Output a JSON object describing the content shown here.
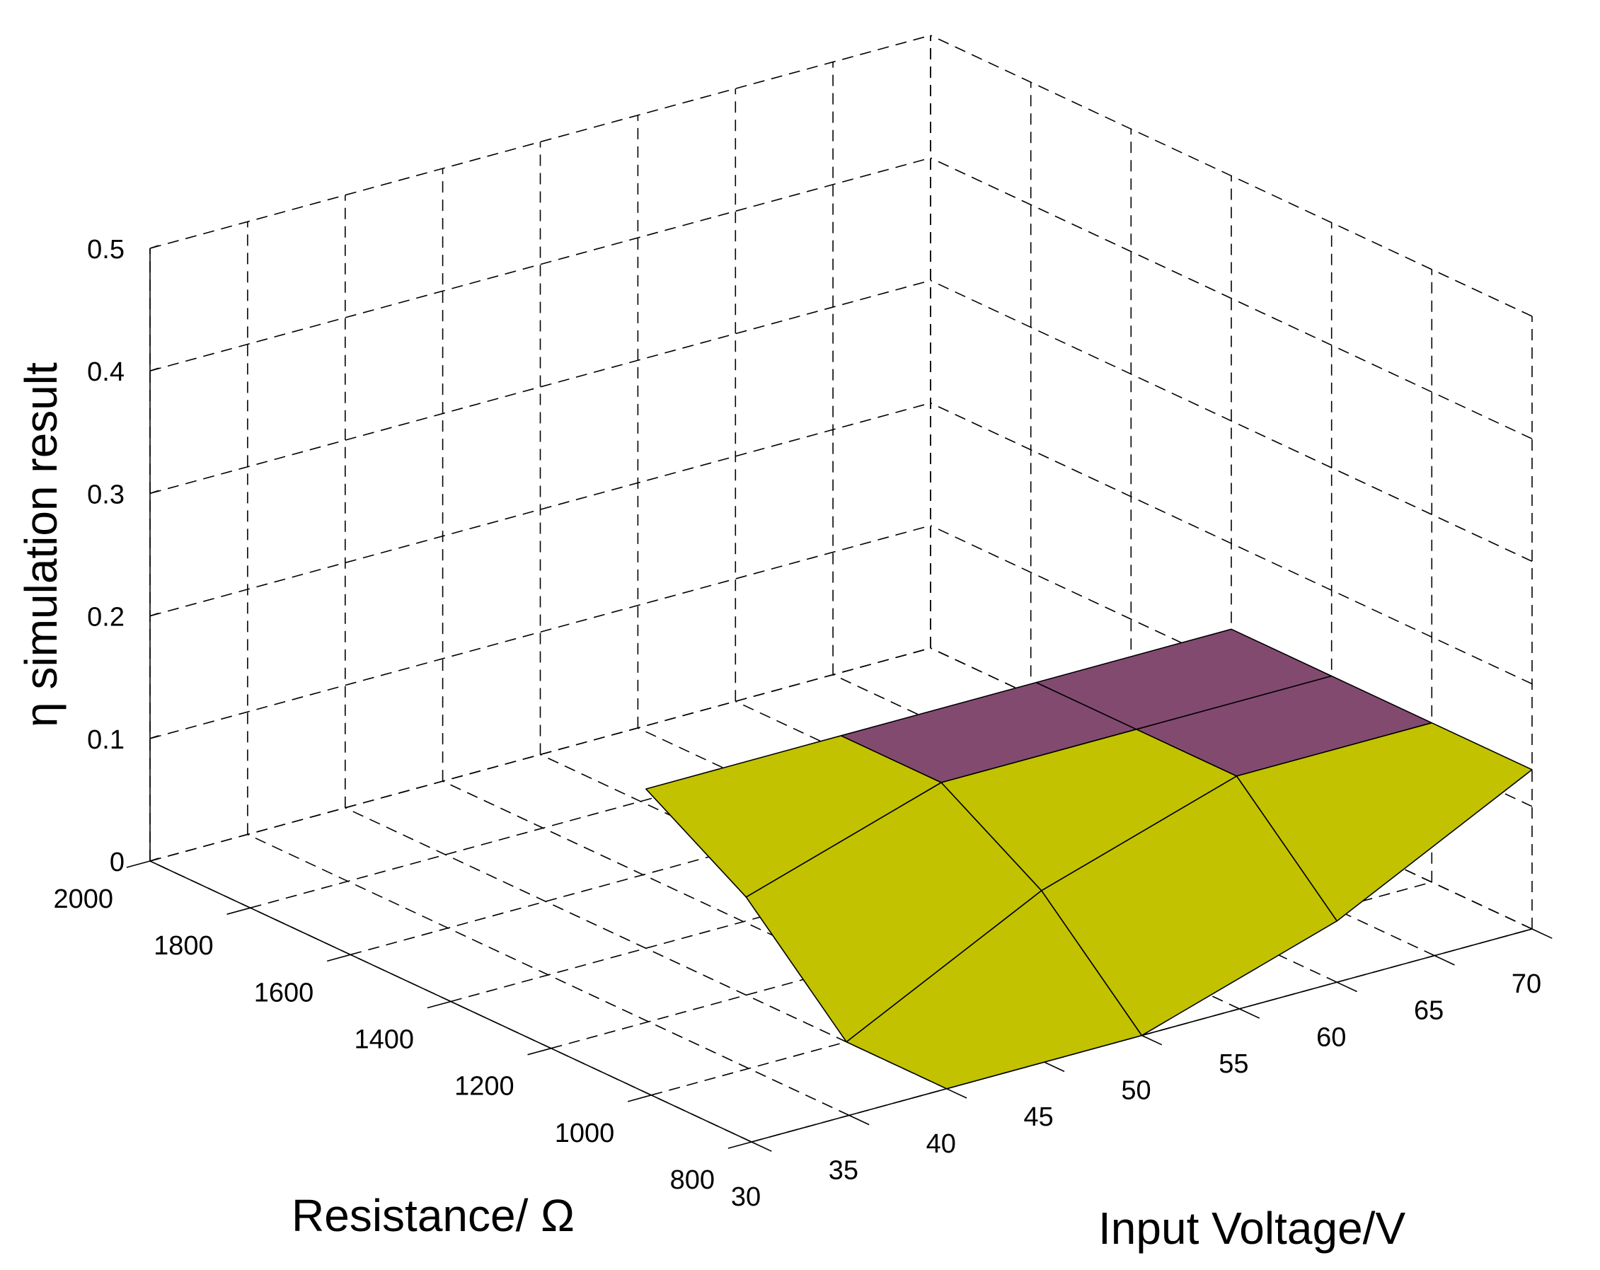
{
  "chart_data": {
    "type": "surface",
    "title": "",
    "xlabel": "Input Voltage/V",
    "ylabel": "Resistance/ Ω",
    "zlabel": "η simulation result",
    "x_ticks": [
      30,
      35,
      40,
      45,
      50,
      55,
      60,
      65,
      70
    ],
    "y_ticks": [
      800,
      1000,
      1200,
      1400,
      1600,
      1800,
      2000
    ],
    "z_ticks": [
      "0",
      "0.1",
      "0.2",
      "0.3",
      "0.4",
      "0.5"
    ],
    "xlim": [
      30,
      70
    ],
    "ylim": [
      800,
      2000
    ],
    "zlim": [
      0,
      0.5
    ],
    "grid": true,
    "surface": {
      "x": [
        40,
        50,
        60,
        70
      ],
      "y": [
        800,
        1000,
        1200,
        1400
      ],
      "z": [
        [
          0.0,
          0.0,
          0.05,
          0.13
        ],
        [
          0.0,
          0.08,
          0.13,
          0.13
        ],
        [
          0.08,
          0.13,
          0.13,
          0.13
        ],
        [
          0.13,
          0.13,
          0.13,
          0.13
        ]
      ],
      "colors": {
        "top": "#834a70",
        "lower": "#c2c200"
      }
    }
  }
}
